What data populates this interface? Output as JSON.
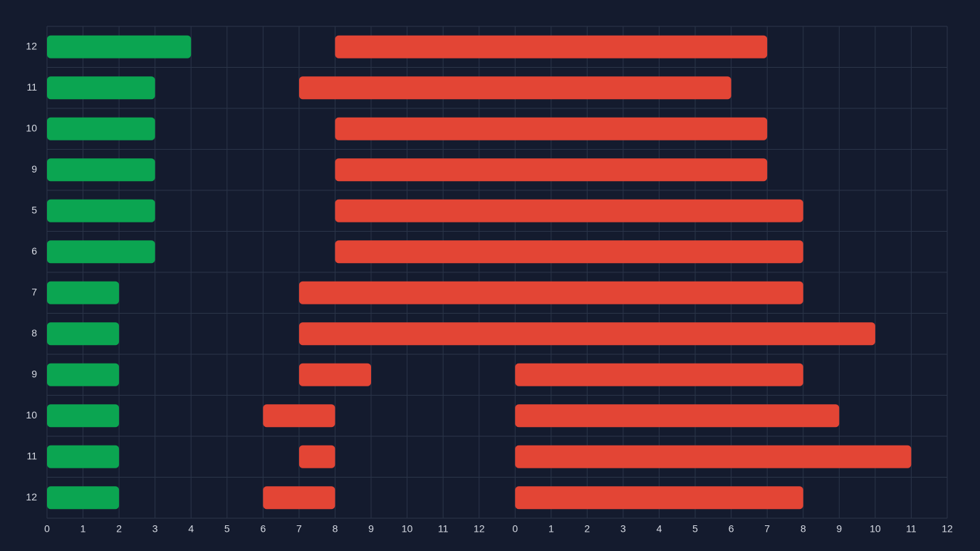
{
  "chart_data": {
    "type": "gantt",
    "categories": [
      "12",
      "11",
      "10",
      "9",
      "5",
      "6",
      "7",
      "8",
      "9",
      "10",
      "11",
      "12"
    ],
    "series": [
      {
        "color": "#0ba551",
        "starts": [
          0,
          0,
          0,
          0,
          0,
          0,
          0,
          0,
          0,
          0,
          0,
          0
        ],
        "ends": [
          4,
          3,
          3,
          3,
          3,
          3,
          2,
          2,
          2,
          2,
          2,
          2
        ]
      },
      {
        "color": "#e34535",
        "starts": [
          8,
          7,
          8,
          8,
          8,
          8,
          7,
          7,
          7,
          6,
          7,
          6
        ],
        "ends": [
          20,
          19,
          20,
          20,
          21,
          21,
          21,
          23,
          9,
          8,
          8,
          8
        ]
      },
      {
        "color": "#e34535",
        "starts": [
          null,
          null,
          null,
          null,
          null,
          null,
          null,
          null,
          13,
          13,
          13,
          13
        ],
        "ends": [
          null,
          null,
          null,
          null,
          null,
          null,
          null,
          null,
          21,
          22,
          24,
          21
        ]
      }
    ],
    "xlim": [
      0,
      25
    ],
    "xticks": [
      0,
      1,
      2,
      3,
      4,
      5,
      6,
      7,
      8,
      9,
      10,
      11,
      12,
      {
        "value": 13,
        "label": "0"
      },
      {
        "value": 14,
        "label": "1"
      },
      {
        "value": 15,
        "label": "2"
      },
      {
        "value": 16,
        "label": "3"
      },
      {
        "value": 17,
        "label": "4"
      },
      {
        "value": 18,
        "label": "5"
      },
      {
        "value": 19,
        "label": "6"
      },
      {
        "value": 20,
        "label": "7"
      },
      {
        "value": 21,
        "label": "8"
      },
      {
        "value": 22,
        "label": "9"
      },
      {
        "value": 23,
        "label": "10"
      },
      {
        "value": 24,
        "label": "11"
      },
      {
        "value": 25,
        "label": "12"
      }
    ],
    "grid": true
  }
}
